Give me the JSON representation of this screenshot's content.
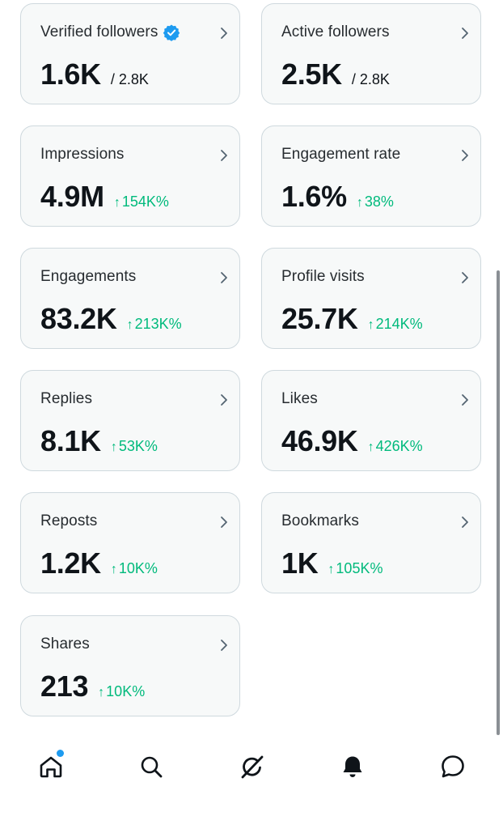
{
  "colors": {
    "accent": "#1d9bf0",
    "positive": "#00ba7c",
    "card_bg": "#f7f9f9",
    "card_border": "#cfd9de"
  },
  "cards": [
    {
      "label": "Verified followers",
      "value": "1.6K",
      "sub": "/ 2.8K",
      "verified": true
    },
    {
      "label": "Active followers",
      "value": "2.5K",
      "sub": "/ 2.8K"
    },
    {
      "label": "Impressions",
      "value": "4.9M",
      "delta": "154K%"
    },
    {
      "label": "Engagement rate",
      "value": "1.6%",
      "delta": "38%"
    },
    {
      "label": "Engagements",
      "value": "83.2K",
      "delta": "213K%"
    },
    {
      "label": "Profile visits",
      "value": "25.7K",
      "delta": "214K%"
    },
    {
      "label": "Replies",
      "value": "8.1K",
      "delta": "53K%"
    },
    {
      "label": "Likes",
      "value": "46.9K",
      "delta": "426K%"
    },
    {
      "label": "Reposts",
      "value": "1.2K",
      "delta": "10K%"
    },
    {
      "label": "Bookmarks",
      "value": "1K",
      "delta": "105K%"
    },
    {
      "label": "Shares",
      "value": "213",
      "delta": "10K%"
    }
  ],
  "delta_arrow": "↑",
  "nav": [
    {
      "name": "home-icon",
      "has_dot": true
    },
    {
      "name": "search-icon"
    },
    {
      "name": "grok-icon"
    },
    {
      "name": "notifications-icon"
    },
    {
      "name": "messages-icon"
    }
  ]
}
